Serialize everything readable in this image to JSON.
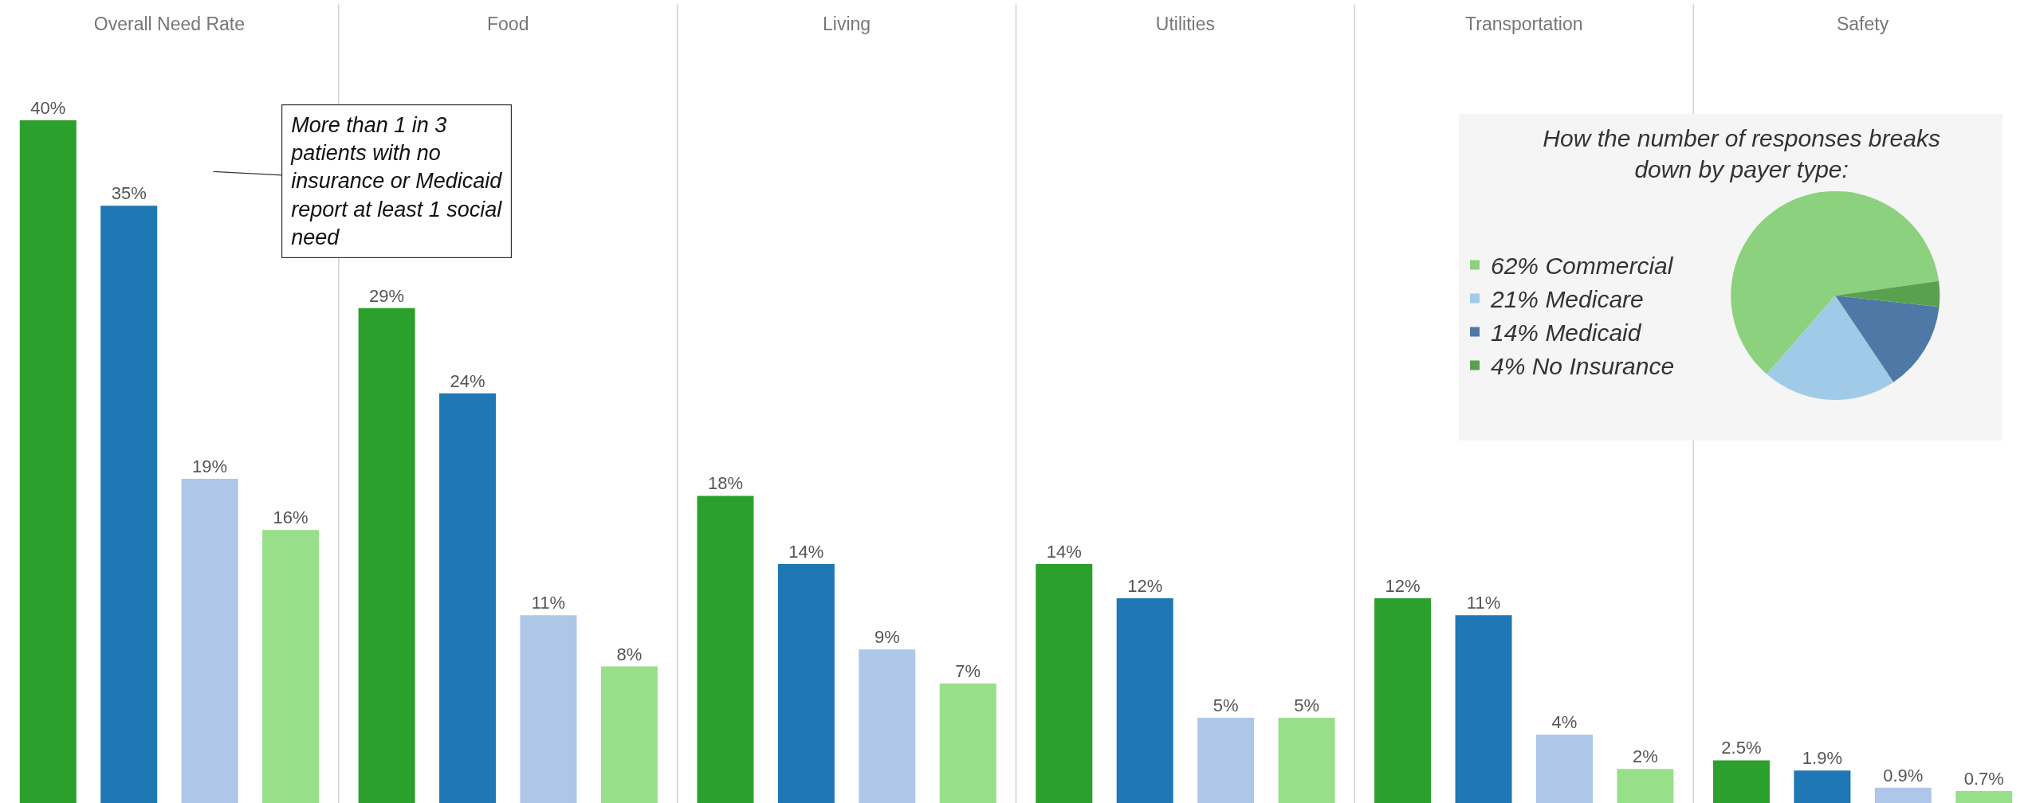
{
  "chart_data": [
    {
      "type": "bar",
      "categories": [
        "Overall Need Rate",
        "Food",
        "Living",
        "Utilities",
        "Transportation",
        "Safety"
      ],
      "series": [
        {
          "color": "#2ca02c",
          "values": [
            40,
            29,
            18,
            14,
            12,
            2.5
          ],
          "value_labels": [
            "40%",
            "29%",
            "18%",
            "14%",
            "12%",
            "2.5%"
          ]
        },
        {
          "color": "#1f77b4",
          "values": [
            35,
            24,
            14,
            12,
            11,
            1.9
          ],
          "value_labels": [
            "35%",
            "24%",
            "14%",
            "12%",
            "11%",
            "1.9%"
          ]
        },
        {
          "color": "#aec7e8",
          "values": [
            19,
            11,
            9,
            5,
            4,
            0.9
          ],
          "value_labels": [
            "19%",
            "11%",
            "9%",
            "5%",
            "4%",
            "0.9%"
          ]
        },
        {
          "color": "#98df8a",
          "values": [
            16,
            8,
            7,
            5,
            2,
            0.7
          ],
          "value_labels": [
            "16%",
            "8%",
            "7%",
            "5%",
            "2%",
            "0.7%"
          ]
        }
      ],
      "annotations": [
        "More than 1 in 3 patients with no insurance or Medicaid report at least 1 social need"
      ],
      "legend": false
    },
    {
      "type": "pie",
      "title": "How the number of responses breaks down by payer type:",
      "categories": [
        "62% Commercial",
        "21% Medicare",
        "14% Medicaid",
        "4% No Insurance"
      ],
      "values": [
        62,
        21,
        14,
        4
      ],
      "colors": [
        "#8cd17d",
        "#a0cbe8",
        "#4e79a7",
        "#59a14f"
      ],
      "legend": "left"
    }
  ]
}
